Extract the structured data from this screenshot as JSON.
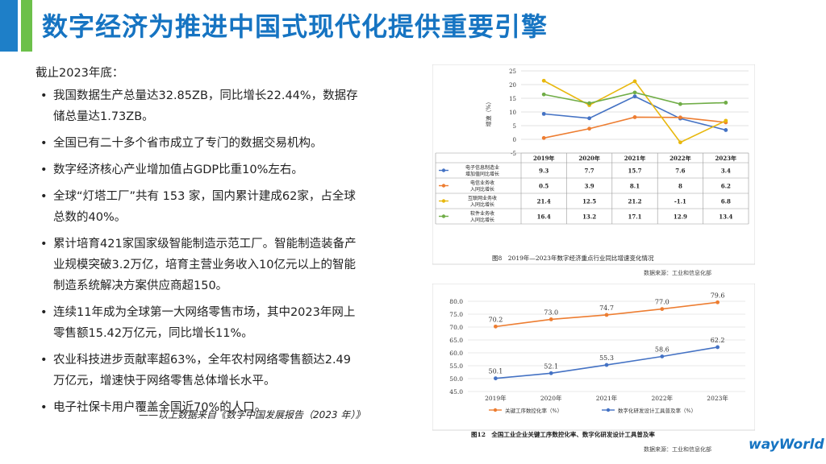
{
  "slide": {
    "title": "数字经济为推进中国式现代化提供重要引擎",
    "intro": "截止2023年底：",
    "bullets": [
      "我国数据生产总量达32.85ZB，同比增长22.44%，数据存储总量达1.73ZB。",
      "全国已有二十多个省市成立了专门的数据交易机构。",
      "数字经济核心产业增加值占GDP比重10%左右。",
      "全球“灯塔工厂”共有 153 家，国内累计建成62家，占全球总数的40%。",
      "累计培育421家国家级智能制造示范工厂。智能制造装备产业规模突破3.2万亿，培育主营业务收入10亿元以上的智能制造系统解决方案供应商超150。",
      "连续11年成为全球第一大网络零售市场，其中2023年网上零售额15.42万亿元，同比增长11%。",
      "农业科技进步贡献率超63%，全年农村网络零售额达2.49万亿元，增速快于网络零售总体增长水平。",
      "电子社保卡用户覆盖全国近70%的人口。"
    ],
    "source_note": "——以上数据来自《数字中国发展报告（2023 年）》",
    "logo_text": "wayWorld",
    "colors": {
      "title": "#1674c2",
      "bar_blue": "#1e7fc8",
      "bar_green": "#6cc04a"
    }
  },
  "chart_data": [
    {
      "type": "line",
      "title": "图8　2019年—2023年数字经济重点行业同比增速变化情况",
      "source": "数据来源：工业和信息化部",
      "ylabel": "增速（%）",
      "ylim": [
        -5,
        25
      ],
      "yticks": [
        -5,
        0,
        5,
        10,
        15,
        20,
        25
      ],
      "categories": [
        "2019年",
        "2020年",
        "2021年",
        "2022年",
        "2023年"
      ],
      "series": [
        {
          "name": "电子信息制造业增加值同比增长",
          "color": "#4472c4",
          "values": [
            9.3,
            7.7,
            15.7,
            7.6,
            3.4
          ],
          "labels": [
            "9.3",
            "7.7",
            "15.7",
            "7.6",
            "3.4"
          ]
        },
        {
          "name": "电信业务收入同比增长",
          "color": "#ed7d31",
          "values": [
            0.5,
            3.9,
            8.1,
            8,
            6.2
          ],
          "labels": [
            "0.5",
            "3.9",
            "8.1",
            "8",
            "6.2"
          ]
        },
        {
          "name": "互联网业务收入同比增长",
          "color": "#e8b80e",
          "values": [
            21.4,
            12.5,
            21.2,
            -1.1,
            6.8
          ],
          "labels": [
            "21.4",
            "12.5",
            "21.2",
            "-1.1",
            "6.8"
          ]
        },
        {
          "name": "软件业务收入同比增长",
          "color": "#70ad47",
          "values": [
            16.4,
            13.2,
            17.1,
            12.9,
            13.4
          ],
          "labels": [
            "16.4",
            "13.2",
            "17.1",
            "12.9",
            "13.4"
          ]
        }
      ]
    },
    {
      "type": "line",
      "title": "图12　全国工业企业关键工序数控化率、数字化研发设计工具普及率",
      "source": "数据来源：工业和信息化部",
      "ylim": [
        45,
        80
      ],
      "yticks": [
        45,
        50,
        55,
        60,
        65,
        70,
        75,
        80
      ],
      "ytick_labels": [
        "45.0",
        "50.0",
        "55.0",
        "60.0",
        "65.0",
        "70.0",
        "75.0",
        "80.0"
      ],
      "categories": [
        "2019年",
        "2020年",
        "2021年",
        "2022年",
        "2023年"
      ],
      "series": [
        {
          "name": "关键工序数控化率（%）",
          "color": "#ed7d31",
          "values": [
            70.2,
            73.0,
            74.7,
            77.0,
            79.6
          ],
          "labels": [
            "70.2",
            "73.0",
            "74.7",
            "77.0",
            "79.6"
          ]
        },
        {
          "name": "数字化研发设计工具普及率（%）",
          "color": "#4472c4",
          "values": [
            50.1,
            52.1,
            55.3,
            58.6,
            62.2
          ],
          "labels": [
            "50.1",
            "52.1",
            "55.3",
            "58.6",
            "62.2"
          ]
        }
      ]
    }
  ]
}
